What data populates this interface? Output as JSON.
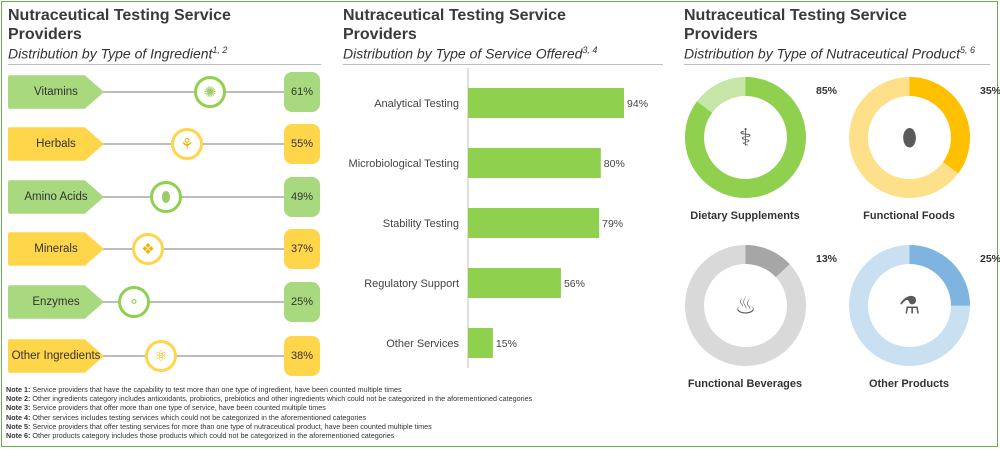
{
  "colors": {
    "green": "#8fd14f",
    "green_light": "#a8d97f",
    "yellow": "#ffd54a",
    "orange": "#ffc000",
    "grey": "#a6a6a6",
    "blue": "#7fb3e0"
  },
  "panel1": {
    "title_line1": "Nutraceutical Testing Service",
    "title_line2": "Providers",
    "subtitle": "Distribution by Type of Ingredient",
    "subtitle_sup": "1, 2",
    "rows": [
      {
        "label": "Vitamins",
        "percent": "61%",
        "value": 61,
        "color": "green",
        "icon": "citrus-slice-icon",
        "glyph": "✺"
      },
      {
        "label": "Herbals",
        "percent": "55%",
        "value": 55,
        "color": "yellow",
        "icon": "herb-sprout-icon",
        "glyph": "⚘"
      },
      {
        "label": "Amino Acids",
        "percent": "49%",
        "value": 49,
        "color": "green",
        "icon": "capsule-seed-icon",
        "glyph": "⬮"
      },
      {
        "label": "Minerals",
        "percent": "37%",
        "value": 37,
        "color": "yellow",
        "icon": "crystal-icon",
        "glyph": "❖"
      },
      {
        "label": "Enzymes",
        "percent": "25%",
        "value": 25,
        "color": "green",
        "icon": "molecule-icon",
        "glyph": "⚬"
      },
      {
        "label": "Other Ingredients",
        "percent": "38%",
        "value": 38,
        "color": "yellow",
        "icon": "atom-icon",
        "glyph": "⚛"
      }
    ]
  },
  "notes": [
    {
      "label": "Note 1:",
      "text": " Service providers that have the capability to test more than one type of ingredient, have been counted multiple times"
    },
    {
      "label": "Note 2:",
      "text": " Other ingredients category includes antioxidants, probiotics, prebiotics and other ingredients which could not be categorized in the aforementioned categories"
    },
    {
      "label": "Note 3:",
      "text": " Service providers that offer more than one type of service, have been counted multiple times"
    },
    {
      "label": "Note 4:",
      "text": " Other services includes testing services which could not be categorized in the aforementioned categories"
    },
    {
      "label": "Note 5:",
      "text": " Service providers that offer testing services for more than one type of nutraceutical product, have been counted multiple times"
    },
    {
      "label": "Note 6:",
      "text": " Other products category includes those products which could not be categorized in the aforementioned categories"
    }
  ],
  "panel2": {
    "title_line1": "Nutraceutical Testing Service",
    "title_line2": "Providers",
    "subtitle": "Distribution by Type of Service Offered",
    "subtitle_sup": "3, 4"
  },
  "panel3": {
    "title_line1": "Nutraceutical Testing Service",
    "title_line2": "Providers",
    "subtitle": "Distribution by Type of Nutraceutical Product",
    "subtitle_sup": "5, 6"
  },
  "chart_data": [
    {
      "type": "bar",
      "orientation": "horizontal",
      "title": "Distribution by Type of Service Offered",
      "categories": [
        "Analytical Testing",
        "Microbiological Testing",
        "Stability Testing",
        "Regulatory Support",
        "Other Services"
      ],
      "values": [
        94,
        80,
        79,
        56,
        15
      ],
      "value_labels": [
        "94%",
        "80%",
        "79%",
        "56%",
        "15%"
      ],
      "xlim": [
        0,
        100
      ],
      "color": "#8fd14f"
    },
    {
      "type": "pie",
      "variant": "donut",
      "title": "Distribution by Type of Nutraceutical Product",
      "series": [
        {
          "name": "Dietary Supplements",
          "value": 85,
          "label": "85%",
          "color": "#8fd14f",
          "track": "#c5e6a6",
          "icon": "supplements-icon",
          "glyph": "⚕"
        },
        {
          "name": "Functional Foods",
          "value": 35,
          "label": "35%",
          "color": "#ffc000",
          "track": "#ffe08a",
          "icon": "cocoa-pod-icon",
          "glyph": "⬮"
        },
        {
          "name": "Functional Beverages",
          "value": 13,
          "label": "13%",
          "color": "#a6a6a6",
          "track": "#d9d9d9",
          "icon": "bottle-icon",
          "glyph": "♨"
        },
        {
          "name": "Other Products",
          "value": 25,
          "label": "25%",
          "color": "#7fb3e0",
          "track": "#c9dff2",
          "icon": "flask-plant-icon",
          "glyph": "⚗"
        }
      ]
    }
  ]
}
